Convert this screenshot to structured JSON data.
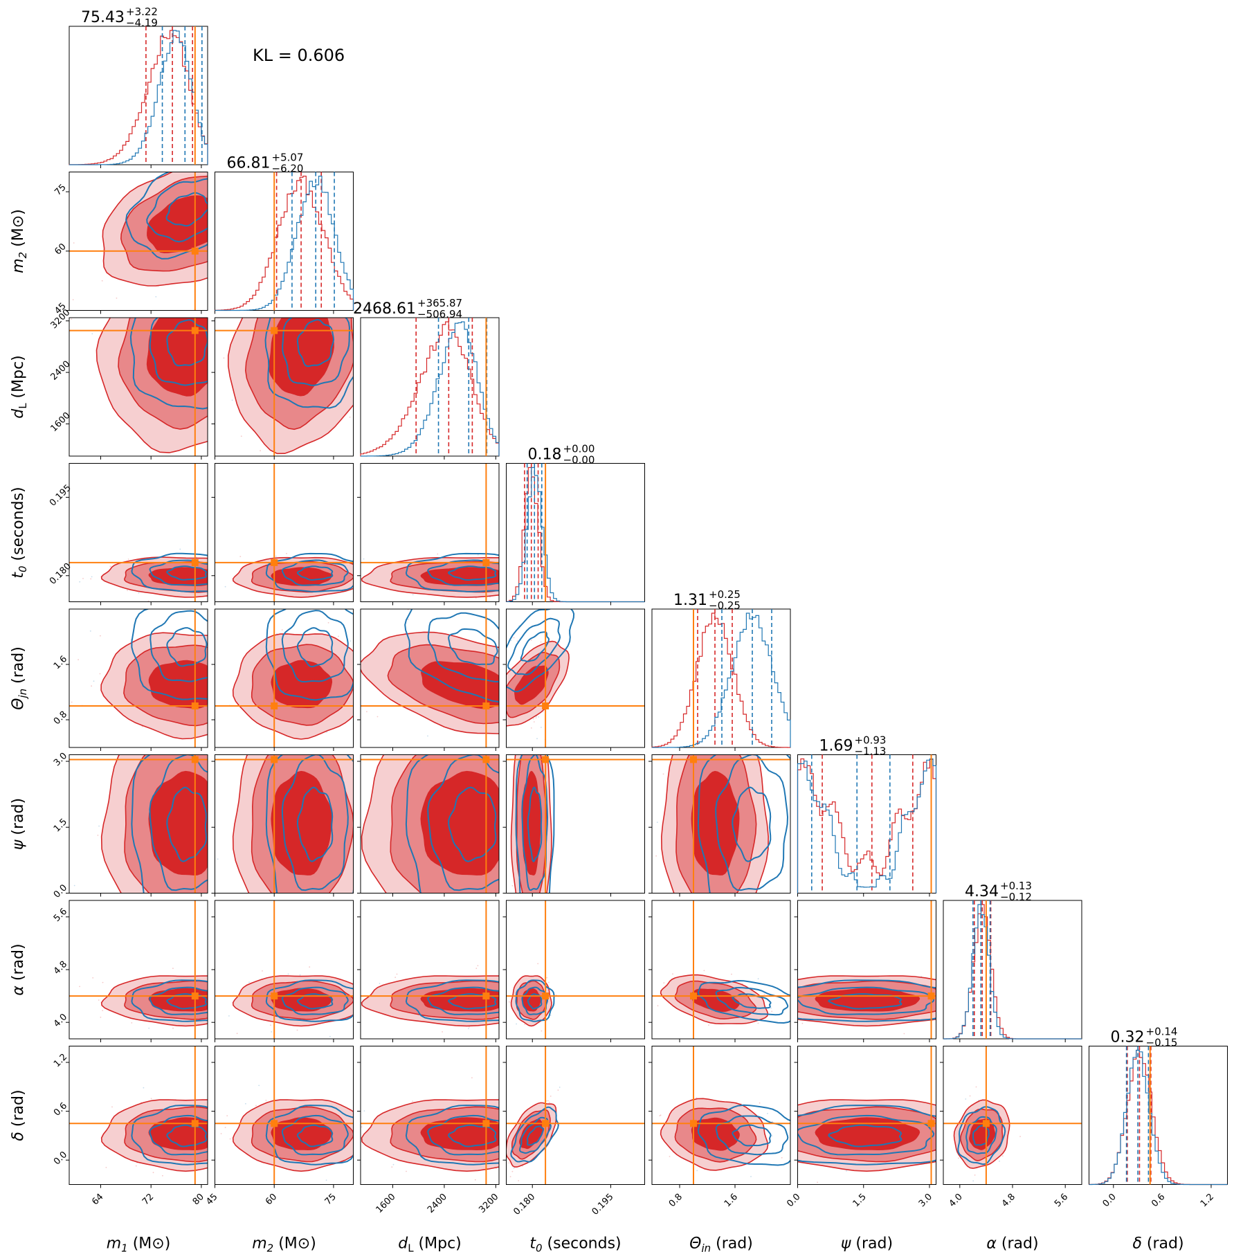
{
  "annotation": "KL = 0.606",
  "colors": {
    "series_a": "#d62728",
    "series_b": "#1f77b4",
    "truth": "#ff7f0e",
    "fill_inner": "#d62728",
    "fill_mid": "#e8888a",
    "fill_outer": "#f6cfd0"
  },
  "chart_data": {
    "type": "corner",
    "series": [
      {
        "name": "",
        "color": "#d62728"
      },
      {
        "name": "",
        "color": "#1f77b4"
      }
    ],
    "params": [
      {
        "key": "m1",
        "label_base": "m",
        "label_sub": "1",
        "label_unit": "(M⊙)",
        "range": [
          59,
          81
        ],
        "ticks": [
          64,
          72,
          80
        ],
        "tick_labels": [
          "64",
          "72",
          "80"
        ],
        "truth": 79.0,
        "title_value": "75.43",
        "title_plus": "+3.22",
        "title_minus": "−4.19",
        "a": {
          "mu": 77.5,
          "sd": 4.5,
          "skew": -1.5,
          "q": [
            71.2,
            75.4,
            78.6
          ]
        },
        "b": {
          "mu": 77.8,
          "sd": 3.4,
          "skew": -1.2,
          "q": [
            73.8,
            77.4,
            80.1
          ]
        }
      },
      {
        "key": "m2",
        "label_base": "m",
        "label_sub": "2",
        "label_unit": "(M⊙)",
        "range": [
          45,
          80
        ],
        "ticks": [
          45,
          60,
          75
        ],
        "tick_labels": [
          "45",
          "60",
          "75"
        ],
        "truth": 60.0,
        "title_value": "66.81",
        "title_plus": "+5.07",
        "title_minus": "−6.20",
        "a": {
          "mu": 66.8,
          "sd": 5.8,
          "skew": 0,
          "q": [
            60.6,
            66.8,
            71.9
          ]
        },
        "b": {
          "mu": 70.5,
          "sd": 4.8,
          "skew": 0,
          "q": [
            64.5,
            70.5,
            75.2
          ]
        }
      },
      {
        "key": "dL",
        "label_base": "d",
        "label_sub": "L",
        "label_unit": "(Mpc)",
        "range": [
          1100,
          3250
        ],
        "ticks": [
          1600,
          2400,
          3200
        ],
        "tick_labels": [
          "1600",
          "2400",
          "3200"
        ],
        "truth": 3050,
        "title_value": "2468.61",
        "title_plus": "+365.87",
        "title_minus": "−506.94",
        "a": {
          "mu": 2750,
          "sd": 550,
          "skew": -1.5,
          "q": [
            1962,
            2469,
            2835
          ]
        },
        "b": {
          "mu": 2850,
          "sd": 400,
          "skew": -1.3,
          "q": [
            2310,
            2780,
            3060
          ]
        }
      },
      {
        "key": "t0",
        "label_base": "t",
        "label_sub": "0",
        "label_unit": "(seconds)",
        "range": [
          0.175,
          0.2015
        ],
        "ticks": [
          0.18,
          0.195
        ],
        "tick_labels": [
          "0.180",
          "0.195"
        ],
        "truth": 0.1825,
        "title_value": "0.18",
        "title_plus": "+0.00",
        "title_minus": "−0.00",
        "a": {
          "mu": 0.1798,
          "sd": 0.0013,
          "skew": 0,
          "q": [
            0.1785,
            0.1798,
            0.1811
          ]
        },
        "b": {
          "mu": 0.1805,
          "sd": 0.0014,
          "skew": 0,
          "q": [
            0.179,
            0.1804,
            0.1818
          ]
        }
      },
      {
        "key": "theta_jn",
        "label_base": "Θ",
        "label_sub": "jn",
        "label_unit": "(rad)",
        "range": [
          0.4,
          2.4
        ],
        "ticks": [
          0.8,
          1.6
        ],
        "tick_labels": [
          "0.8",
          "1.6"
        ],
        "truth": 1.0,
        "title_value": "1.31",
        "title_plus": "+0.25",
        "title_minus": "−0.25",
        "a": {
          "mu": 1.31,
          "sd": 0.26,
          "skew": 0,
          "q": [
            1.06,
            1.31,
            1.56
          ]
        },
        "b": {
          "mu": 1.85,
          "sd": 0.3,
          "skew": 0,
          "q": [
            1.41,
            1.85,
            2.13
          ]
        }
      },
      {
        "key": "psi",
        "label_base": "ψ",
        "label_sub": "",
        "label_unit": "(rad)",
        "range": [
          0,
          3.15
        ],
        "ticks": [
          0,
          1.5,
          3.0
        ],
        "tick_labels": [
          "0.0",
          "1.5",
          "3.0"
        ],
        "truth": 3.04,
        "title_value": "1.69",
        "title_plus": "+0.93",
        "title_minus": "−1.13",
        "a": {
          "mu": 1.57,
          "sd": 0.9,
          "skew": 0,
          "q": [
            0.56,
            1.69,
            2.62
          ]
        },
        "b": {
          "mu": 1.57,
          "sd": 0.9,
          "skew": 0,
          "q": [
            0.32,
            1.35,
            2.1
          ]
        }
      },
      {
        "key": "alpha",
        "label_base": "α",
        "label_sub": "",
        "label_unit": "(rad)",
        "range": [
          3.75,
          5.85
        ],
        "ticks": [
          4.0,
          4.8,
          5.6
        ],
        "tick_labels": [
          "4.0",
          "4.8",
          "5.6"
        ],
        "truth": 4.4,
        "title_value": "4.34",
        "title_plus": "+0.13",
        "title_minus": "−0.12",
        "a": {
          "mu": 4.34,
          "sd": 0.13,
          "skew": 0,
          "q": [
            4.22,
            4.34,
            4.47
          ]
        },
        "b": {
          "mu": 4.32,
          "sd": 0.12,
          "skew": 0,
          "q": [
            4.2,
            4.32,
            4.46
          ]
        }
      },
      {
        "key": "delta",
        "label_base": "δ",
        "label_sub": "",
        "label_unit": "(rad)",
        "range": [
          -0.3,
          1.4
        ],
        "ticks": [
          0.0,
          0.6,
          1.2
        ],
        "tick_labels": [
          "0.0",
          "0.6",
          "1.2"
        ],
        "truth": 0.45,
        "title_value": "0.32",
        "title_plus": "+0.14",
        "title_minus": "−0.15",
        "a": {
          "mu": 0.32,
          "sd": 0.15,
          "skew": 0,
          "q": [
            0.17,
            0.32,
            0.46
          ]
        },
        "b": {
          "mu": 0.3,
          "sd": 0.14,
          "skew": 0,
          "q": [
            0.16,
            0.3,
            0.43
          ]
        }
      }
    ],
    "correlations": [
      [
        1.0,
        0.55,
        -0.2,
        -0.1,
        -0.1,
        0.0,
        0.0,
        0.0
      ],
      [
        0.55,
        1.0,
        -0.15,
        -0.05,
        -0.05,
        0.0,
        0.0,
        0.0
      ],
      [
        -0.2,
        -0.15,
        1.0,
        0.0,
        -0.5,
        0.0,
        -0.05,
        0.0
      ],
      [
        -0.1,
        -0.05,
        0.0,
        1.0,
        -0.3,
        0.0,
        0.0,
        0.85
      ],
      [
        -0.1,
        -0.05,
        -0.5,
        -0.3,
        1.0,
        0.0,
        -0.45,
        -0.2
      ],
      [
        0.0,
        0.0,
        0.0,
        0.0,
        0.0,
        1.0,
        0.0,
        0.0
      ],
      [
        0.0,
        0.0,
        -0.05,
        0.0,
        -0.45,
        0.0,
        1.0,
        -0.25
      ],
      [
        0.0,
        0.0,
        0.0,
        0.85,
        -0.2,
        0.0,
        -0.25,
        1.0
      ]
    ]
  }
}
